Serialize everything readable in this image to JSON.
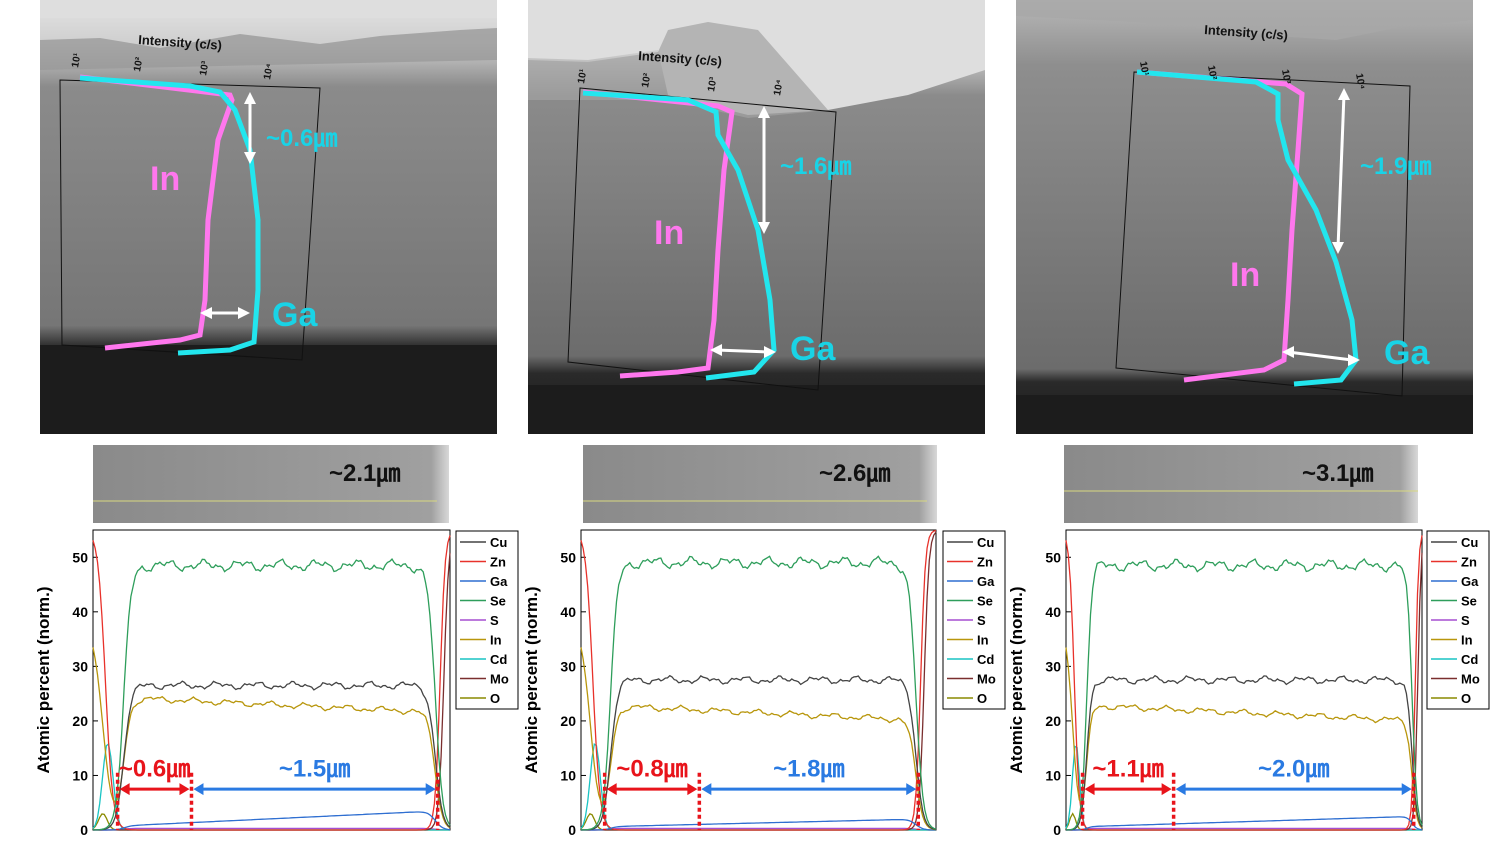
{
  "colors": {
    "cu": "#444444",
    "zn": "#e8322b",
    "ga": "#2f6fd1",
    "se": "#2e9e5b",
    "s": "#a64fd1",
    "in": "#b8960c",
    "cd": "#19c4c4",
    "mo": "#7a2e2e",
    "o": "#8a8a00",
    "tem_in": "#ff77ee",
    "tem_ga": "#22e6ee",
    "tem_text": "#19d3e6",
    "red_arrow": "#e8141b",
    "blue_arrow": "#2a7ae2"
  },
  "panels": [
    {
      "tem": {
        "axis_title": "Intensity (c/s)",
        "ticks": [
          "10¹",
          "10²",
          "10³",
          "10⁴"
        ],
        "in_label": "In",
        "ga_label": "Ga",
        "depth_label": "~0.6㎛"
      },
      "sem_label": "~2.1㎛",
      "legend": [
        "Cu",
        "Zn",
        "Ga",
        "Se",
        "S",
        "In",
        "Cd",
        "Mo",
        "O"
      ],
      "annotation_red": "~0.6㎛",
      "annotation_blue": "~1.5㎛",
      "chart_data": {
        "type": "line",
        "ylabel": "Atomic percent (norm.)",
        "ylim": [
          0,
          55
        ],
        "yticks": [
          0,
          10,
          20,
          30,
          40,
          50
        ],
        "xlim": [
          0,
          2.9
        ],
        "x_red_start": 0.2,
        "x_red_end": 0.8,
        "x_blue_end": 2.8,
        "plateaus": {
          "Se": 48.5,
          "Cu": 26.5,
          "In": 23,
          "Ga_start": 0.5,
          "Ga_end": 3.5
        }
      }
    },
    {
      "tem": {
        "axis_title": "Intensity (c/s)",
        "ticks": [
          "10¹",
          "10²",
          "10³",
          "10⁴"
        ],
        "in_label": "In",
        "ga_label": "Ga",
        "depth_label": "~1.6㎛"
      },
      "sem_label": "~2.6㎛",
      "legend": [
        "Cu",
        "Zn",
        "Ga",
        "Se",
        "S",
        "In",
        "Cd",
        "Mo",
        "O"
      ],
      "annotation_red": "~0.8㎛",
      "annotation_blue": "~1.8㎛",
      "chart_data": {
        "type": "line",
        "ylabel": "Atomic percent (norm.)",
        "ylim": [
          0,
          55
        ],
        "yticks": [
          0,
          10,
          20,
          30,
          40,
          50
        ],
        "xlim": [
          0,
          3.0
        ],
        "x_red_start": 0.2,
        "x_red_end": 1.0,
        "x_blue_end": 2.85,
        "plateaus": {
          "Se": 49,
          "Cu": 27.5,
          "In": 21.5,
          "Ga_start": 0.5,
          "Ga_end": 2
        }
      }
    },
    {
      "tem": {
        "axis_title": "Intensity (c/s)",
        "ticks": [
          "10¹",
          "10²",
          "10³",
          "10⁴"
        ],
        "in_label": "In",
        "ga_label": "Ga",
        "depth_label": "~1.9㎛"
      },
      "sem_label": "~3.1㎛",
      "legend": [
        "Cu",
        "Zn",
        "Ga",
        "Se",
        "S",
        "In",
        "Cd",
        "Mo",
        "O"
      ],
      "annotation_red": "~1.1㎛",
      "annotation_blue": "~2.0㎛",
      "chart_data": {
        "type": "line",
        "ylabel": "Atomic percent (norm.)",
        "ylim": [
          0,
          55
        ],
        "yticks": [
          0,
          10,
          20,
          30,
          40,
          50
        ],
        "xlim": [
          0,
          4.3
        ],
        "x_red_start": 0.2,
        "x_red_end": 1.3,
        "x_blue_end": 4.2,
        "plateaus": {
          "Se": 48.5,
          "Cu": 27.5,
          "In": 21.5,
          "Ga_start": 0.5,
          "Ga_end": 2.5
        }
      }
    }
  ]
}
